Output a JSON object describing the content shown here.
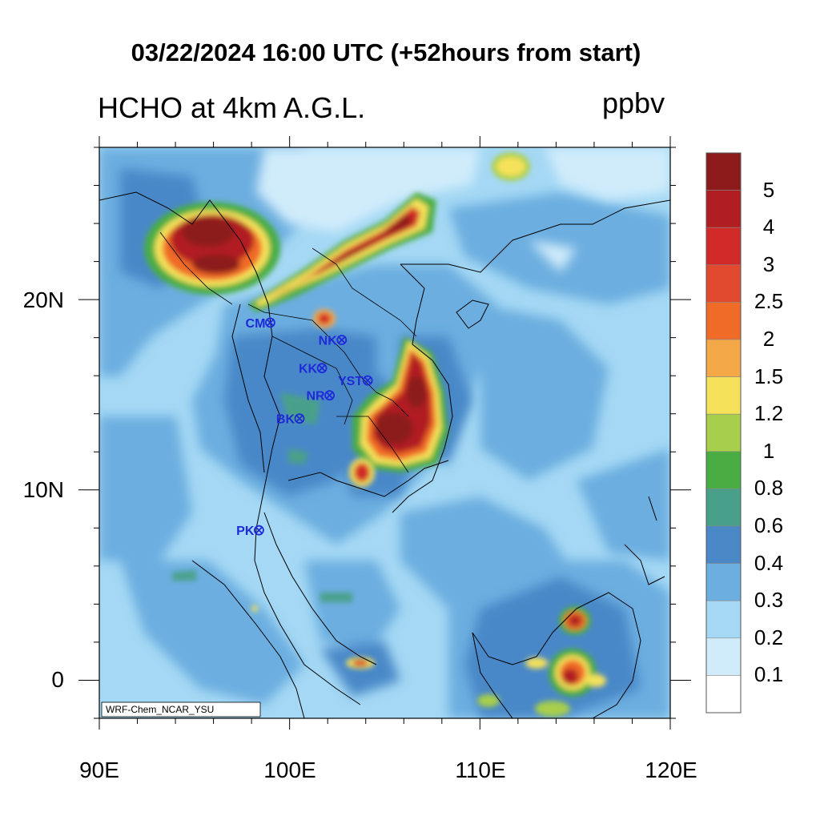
{
  "title": "03/22/2024 16:00 UTC (+52hours from start)",
  "subtitle": "HCHO at 4km A.G.L.",
  "units": "ppbv",
  "credit": "WRF-Chem_NCAR_YSU",
  "axes": {
    "x_ticks": [
      "90E",
      "100E",
      "110E",
      "120E"
    ],
    "y_ticks": [
      "20N",
      "10N",
      "0"
    ],
    "lon_range": [
      90,
      120
    ],
    "lat_range": [
      -2,
      28
    ]
  },
  "colorbar": {
    "labels": [
      "5",
      "4",
      "3",
      "2.5",
      "2",
      "1.5",
      "1.2",
      "1",
      "0.8",
      "0.6",
      "0.4",
      "0.3",
      "0.2",
      "0.1"
    ],
    "colors": [
      "#8c1a1a",
      "#b01e22",
      "#d22a28",
      "#e24a30",
      "#f06a28",
      "#f5a848",
      "#f5e25a",
      "#a8cf4c",
      "#4aad44",
      "#48a08a",
      "#4a88c8",
      "#6caee0",
      "#a4d8f4",
      "#d0ecfb",
      "#ffffff"
    ]
  },
  "stations": [
    {
      "code": "CM",
      "lon": 98.98,
      "lat": 18.79
    },
    {
      "code": "NK",
      "lon": 102.74,
      "lat": 17.88
    },
    {
      "code": "KK",
      "lon": 101.7,
      "lat": 16.4
    },
    {
      "code": "YST",
      "lon": 104.1,
      "lat": 15.75
    },
    {
      "code": "NR",
      "lon": 102.1,
      "lat": 14.97
    },
    {
      "code": "BK",
      "lon": 100.52,
      "lat": 13.75
    },
    {
      "code": "PK",
      "lon": 98.39,
      "lat": 7.88
    }
  ],
  "field_colors": {
    "background": "#a4d8f4",
    "level_0_3": "#6caee0",
    "level_0_4": "#4a88c8",
    "level_0_2": "#d0ecfb",
    "level_0_6": "#48a08a"
  }
}
